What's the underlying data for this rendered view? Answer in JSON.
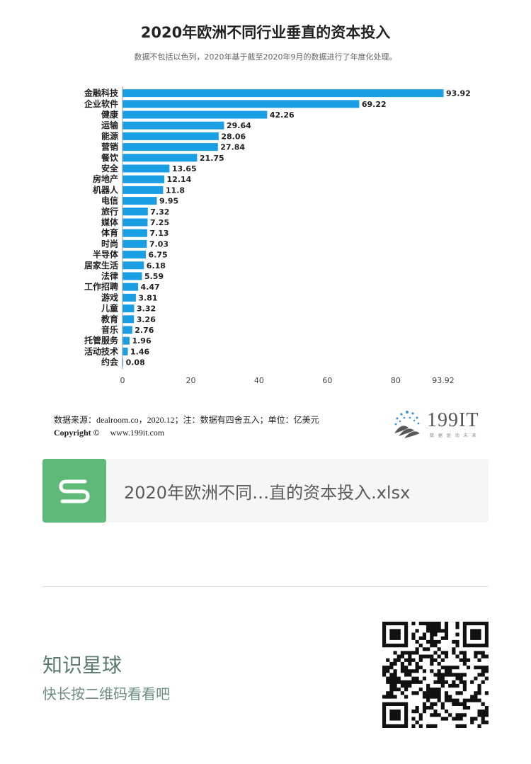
{
  "chart_data": {
    "type": "bar",
    "orientation": "horizontal",
    "title": "2020年欧洲不同行业垂直的资本投入",
    "subtitle": "数据不包括以色列，2020年基于截至2020年9月的数据进行了年度化处理。",
    "categories": [
      "金融科技",
      "企业软件",
      "健康",
      "运输",
      "能源",
      "营销",
      "餐饮",
      "安全",
      "房地产",
      "机器人",
      "电信",
      "旅行",
      "媒体",
      "体育",
      "时尚",
      "半导体",
      "居家生活",
      "法律",
      "工作招聘",
      "游戏",
      "儿童",
      "教育",
      "音乐",
      "托管服务",
      "活动技术",
      "约会"
    ],
    "values": [
      93.92,
      69.22,
      42.26,
      29.64,
      28.06,
      27.84,
      21.75,
      13.65,
      12.14,
      11.8,
      9.95,
      7.32,
      7.25,
      7.13,
      7.03,
      6.75,
      6.18,
      5.59,
      4.47,
      3.81,
      3.32,
      3.26,
      2.76,
      1.96,
      1.46,
      0.08
    ],
    "value_labels": [
      "93.92",
      "69.22",
      "42.26",
      "29.64",
      "28.06",
      "27.84",
      "21.75",
      "13.65",
      "12.14",
      "11.8",
      "9.95",
      "7.32",
      "7.25",
      "7.13",
      "7.03",
      "6.75",
      "6.18",
      "5.59",
      "4.47",
      "3.81",
      "3.32",
      "3.26",
      "2.76",
      "1.96",
      "1.46",
      "0.08"
    ],
    "xticks": [
      0,
      20,
      40,
      60,
      80,
      93.92
    ],
    "xtick_labels": [
      "0",
      "20",
      "40",
      "60",
      "80",
      "93.92"
    ],
    "xlim": [
      0,
      93.92
    ],
    "bar_color": "#1a9ee4",
    "grid": false,
    "legend": "none"
  },
  "footer": {
    "source": "数据来源：dealroom.co，2020.12；注：数据有四舍五入；单位：亿美元",
    "copyright_label": "Copyright ©",
    "copyright_url": "www.199it.com"
  },
  "logo": {
    "text": "199IT",
    "tagline": "数 据 驱 动 未 来"
  },
  "file": {
    "name": "2020年欧洲不同…直的资本投入.xlsx",
    "icon": "spreadsheet-s-icon",
    "icon_color": "#5fb978"
  },
  "promo": {
    "planet": "知识星球",
    "hint": "快长按二维码看看吧"
  }
}
